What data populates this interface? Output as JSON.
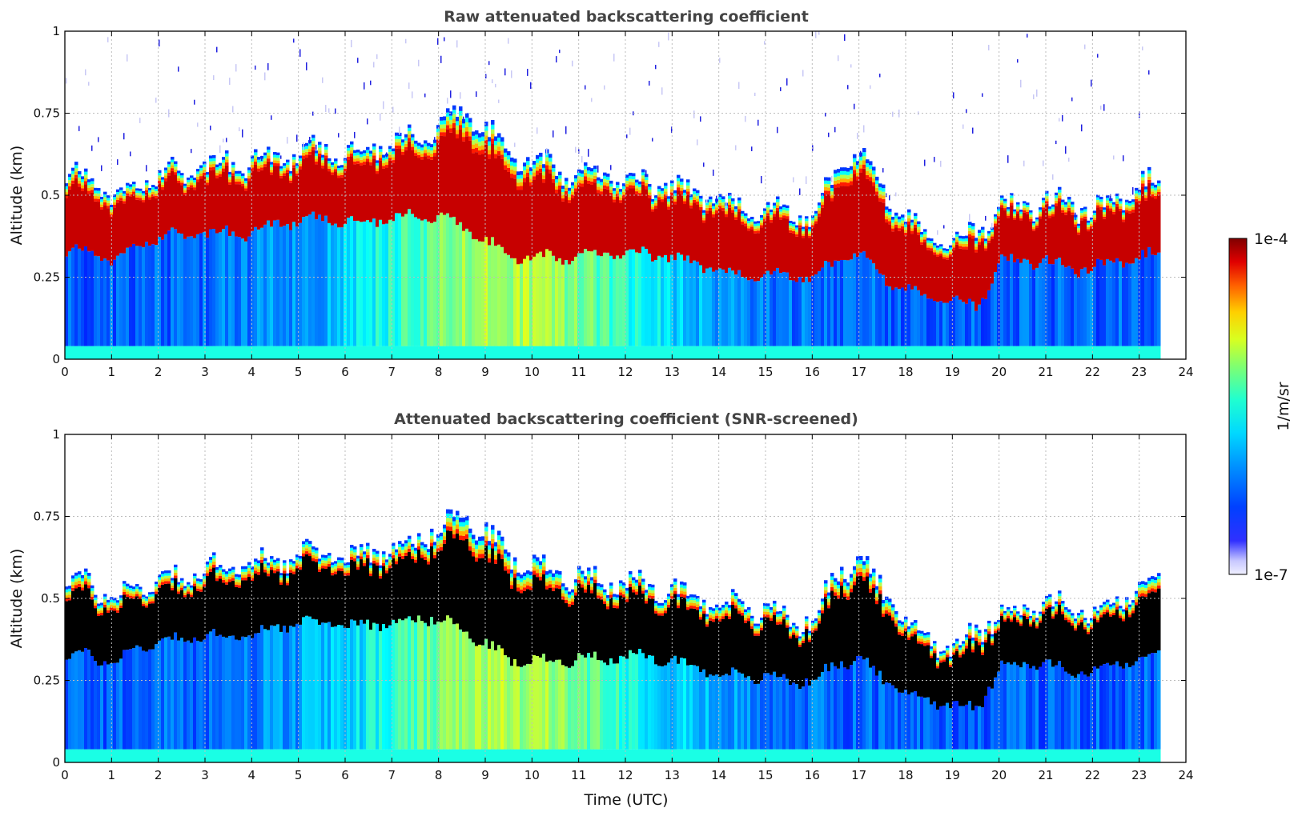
{
  "chart_data": {
    "type": "heatmap",
    "panels": [
      {
        "title": "Raw attenuated backscattering coefficient",
        "ylabel": "Altitude (km)",
        "xlabel": "",
        "xlim": [
          0,
          24
        ],
        "ylim": [
          0,
          1
        ],
        "xticks": [
          "0",
          "1",
          "2",
          "3",
          "4",
          "5",
          "6",
          "7",
          "8",
          "9",
          "10",
          "11",
          "12",
          "13",
          "14",
          "15",
          "16",
          "17",
          "18",
          "19",
          "20",
          "21",
          "22",
          "23",
          "24"
        ],
        "yticks": [
          "0",
          "0.25",
          "0.5",
          "0.75",
          "1"
        ],
        "grid": true,
        "snr_screened": false,
        "data_end_hour": 23.5,
        "layer_top_km": [
          [
            0,
            0.55
          ],
          [
            0.5,
            0.55
          ],
          [
            1,
            0.5
          ],
          [
            1.5,
            0.53
          ],
          [
            2,
            0.57
          ],
          [
            2.5,
            0.56
          ],
          [
            3,
            0.59
          ],
          [
            3.5,
            0.6
          ],
          [
            4,
            0.6
          ],
          [
            4.5,
            0.62
          ],
          [
            5,
            0.63
          ],
          [
            5.5,
            0.64
          ],
          [
            6,
            0.63
          ],
          [
            6.5,
            0.64
          ],
          [
            7,
            0.66
          ],
          [
            7.5,
            0.68
          ],
          [
            8,
            0.72
          ],
          [
            8.5,
            0.75
          ],
          [
            9,
            0.7
          ],
          [
            9.5,
            0.62
          ],
          [
            10,
            0.6
          ],
          [
            10.5,
            0.58
          ],
          [
            11,
            0.57
          ],
          [
            11.5,
            0.56
          ],
          [
            12,
            0.54
          ],
          [
            12.5,
            0.53
          ],
          [
            13,
            0.53
          ],
          [
            13.5,
            0.5
          ],
          [
            14,
            0.49
          ],
          [
            14.5,
            0.47
          ],
          [
            15,
            0.46
          ],
          [
            15.5,
            0.44
          ],
          [
            16,
            0.43
          ],
          [
            16.5,
            0.58
          ],
          [
            17,
            0.62
          ],
          [
            17.5,
            0.52
          ],
          [
            18,
            0.42
          ],
          [
            18.5,
            0.38
          ],
          [
            19,
            0.35
          ],
          [
            19.5,
            0.4
          ],
          [
            20,
            0.46
          ],
          [
            20.5,
            0.47
          ],
          [
            21,
            0.48
          ],
          [
            21.5,
            0.47
          ],
          [
            22,
            0.45
          ],
          [
            22.5,
            0.49
          ],
          [
            23,
            0.53
          ],
          [
            23.5,
            0.55
          ]
        ],
        "layer_bottom_km": [
          [
            0,
            0.32
          ],
          [
            0.5,
            0.33
          ],
          [
            1,
            0.3
          ],
          [
            1.5,
            0.35
          ],
          [
            2,
            0.37
          ],
          [
            2.5,
            0.38
          ],
          [
            3,
            0.38
          ],
          [
            3.5,
            0.39
          ],
          [
            4,
            0.38
          ],
          [
            4.5,
            0.42
          ],
          [
            5,
            0.42
          ],
          [
            5.5,
            0.43
          ],
          [
            6,
            0.42
          ],
          [
            6.5,
            0.42
          ],
          [
            7,
            0.43
          ],
          [
            7.5,
            0.44
          ],
          [
            8,
            0.44
          ],
          [
            8.5,
            0.4
          ],
          [
            9,
            0.36
          ],
          [
            9.5,
            0.31
          ],
          [
            10,
            0.31
          ],
          [
            10.5,
            0.31
          ],
          [
            11,
            0.32
          ],
          [
            11.5,
            0.32
          ],
          [
            12,
            0.32
          ],
          [
            12.5,
            0.32
          ],
          [
            13,
            0.31
          ],
          [
            13.5,
            0.29
          ],
          [
            14,
            0.27
          ],
          [
            14.5,
            0.26
          ],
          [
            15,
            0.26
          ],
          [
            15.5,
            0.25
          ],
          [
            16,
            0.25
          ],
          [
            16.5,
            0.3
          ],
          [
            17,
            0.32
          ],
          [
            17.5,
            0.25
          ],
          [
            18,
            0.21
          ],
          [
            18.5,
            0.19
          ],
          [
            19,
            0.18
          ],
          [
            19.5,
            0.16
          ],
          [
            20,
            0.3
          ],
          [
            20.5,
            0.3
          ],
          [
            21,
            0.3
          ],
          [
            21.5,
            0.27
          ],
          [
            22,
            0.28
          ],
          [
            22.5,
            0.3
          ],
          [
            23,
            0.31
          ],
          [
            23.5,
            0.33
          ]
        ]
      },
      {
        "title": "Attenuated backscattering coefficient (SNR-screened)",
        "ylabel": "Altitude (km)",
        "xlabel": "Time (UTC)",
        "xlim": [
          0,
          24
        ],
        "ylim": [
          0,
          1
        ],
        "xticks": [
          "0",
          "1",
          "2",
          "3",
          "4",
          "5",
          "6",
          "7",
          "8",
          "9",
          "10",
          "11",
          "12",
          "13",
          "14",
          "15",
          "16",
          "17",
          "18",
          "19",
          "20",
          "21",
          "22",
          "23",
          "24"
        ],
        "yticks": [
          "0",
          "0.25",
          "0.5",
          "0.75",
          "1"
        ],
        "grid": true,
        "snr_screened": true,
        "data_end_hour": 23.5
      }
    ],
    "colorbar": {
      "label": "1/m/sr",
      "max_label": "1e-4",
      "min_label": "1e-7",
      "scale": "log",
      "range": [
        1e-07,
        0.0001
      ],
      "colormap": "jet",
      "screened_color": "#000000"
    }
  }
}
